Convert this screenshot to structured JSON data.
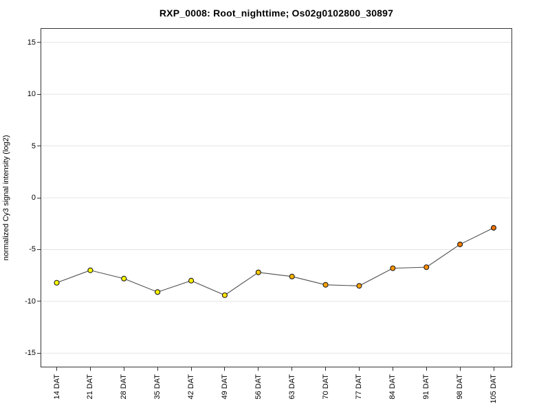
{
  "page": {
    "background": "#ffffff"
  },
  "chart_data": {
    "type": "line",
    "title": "RXP_0008: Root_nighttime; Os02g0102800_30897",
    "subtitle": "",
    "xlabel": "",
    "ylabel": "normalized Cy3 signal intensity (log2)",
    "categories": [
      "14 DAT",
      "21 DAT",
      "28 DAT",
      "35 DAT",
      "42 DAT",
      "49 DAT",
      "56 DAT",
      "63 DAT",
      "70 DAT",
      "77 DAT",
      "84 DAT",
      "91 DAT",
      "98 DAT",
      "105 DAT"
    ],
    "values": [
      -8.2,
      -7.0,
      -7.8,
      -9.1,
      -8.0,
      -9.4,
      -7.2,
      -7.6,
      -8.4,
      -8.5,
      -6.8,
      -6.7,
      -4.5,
      -2.9
    ],
    "point_colors": [
      "#ffff00",
      "#ffff00",
      "#fffb00",
      "#fff600",
      "#ffee00",
      "#ffe400",
      "#ffc800",
      "#ffb300",
      "#ffa500",
      "#ffa000",
      "#ff9400",
      "#ff8c00",
      "#f57e00",
      "#ee7000"
    ],
    "yticks": [
      15,
      10,
      5,
      0,
      -5,
      -10,
      -15
    ],
    "ylim": [
      -16.3,
      16.3
    ],
    "grid": true,
    "legend_position": "none",
    "line_color": "#4d4d4d",
    "marker_stroke": "#1a1a1a",
    "marker_radius": 3.5,
    "axis_color": "#333333",
    "grid_color": "#e4e4e4"
  }
}
